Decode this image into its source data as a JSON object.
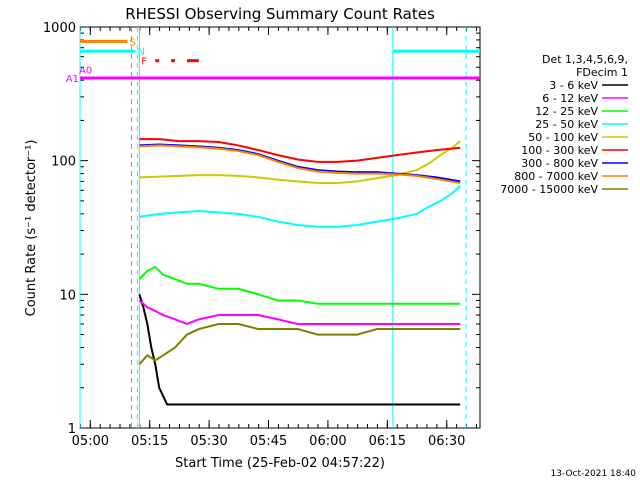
{
  "chart_data": {
    "type": "line",
    "title": "RHESSI Observing Summary Count Rates",
    "xlabel": "Start Time (25-Feb-02 04:57:22)",
    "ylabel": "Count Rate (s⁻¹ detector⁻¹)",
    "yscale": "log",
    "ylim": [
      1,
      1000
    ],
    "xlim_minutes_after_0457": [
      0,
      101
    ],
    "x_unit": "minutes after 04:57:22",
    "x_ticks": [
      {
        "label": "05:00",
        "minutes": 2.6
      },
      {
        "label": "05:15",
        "minutes": 17.6
      },
      {
        "label": "05:30",
        "minutes": 32.6
      },
      {
        "label": "05:45",
        "minutes": 47.6
      },
      {
        "label": "06:00",
        "minutes": 62.6
      },
      {
        "label": "06:15",
        "minutes": 77.6
      },
      {
        "label": "06:30",
        "minutes": 92.6
      }
    ],
    "y_ticks": [
      {
        "label": "1",
        "value": 1
      },
      {
        "label": "10",
        "value": 10
      },
      {
        "label": "100",
        "value": 100
      },
      {
        "label": "1000",
        "value": 1000
      }
    ],
    "legend_header": [
      "Det 1,3,4,5,6,9,",
      "FDecim 1"
    ],
    "legend_placement": "right",
    "series": [
      {
        "name": "3 - 6 keV",
        "color": "#000000",
        "x": [
          15,
          16,
          17,
          18,
          19,
          20,
          22,
          24,
          26,
          30,
          40,
          50,
          60,
          70,
          80,
          90,
          96
        ],
        "y": [
          10,
          8,
          6,
          4,
          3,
          2,
          1.5,
          1.5,
          1.5,
          1.5,
          1.5,
          1.5,
          1.5,
          1.5,
          1.5,
          1.5,
          1.5
        ]
      },
      {
        "name": "6 - 12 keV",
        "color": "#ff00ff",
        "x": [
          15,
          17,
          19,
          21,
          24,
          27,
          30,
          35,
          40,
          45,
          50,
          55,
          60,
          65,
          70,
          75,
          80,
          85,
          90,
          96
        ],
        "y": [
          9,
          8,
          7.5,
          7,
          6.5,
          6,
          6.5,
          7,
          7,
          7,
          6.5,
          6,
          6,
          6,
          6,
          6,
          6,
          6,
          6,
          6
        ]
      },
      {
        "name": "12 - 25 keV",
        "color": "#00ff00",
        "x": [
          15,
          17,
          19,
          21,
          24,
          27,
          30,
          35,
          40,
          45,
          50,
          55,
          60,
          65,
          70,
          75,
          80,
          85,
          90,
          96
        ],
        "y": [
          13,
          15,
          16,
          14,
          13,
          12,
          12,
          11,
          11,
          10,
          9,
          9,
          8.5,
          8.5,
          8.5,
          8.5,
          8.5,
          8.5,
          8.5,
          8.5
        ]
      },
      {
        "name": "25 - 50 keV",
        "color": "#00ffff",
        "x": [
          15,
          20,
          25,
          30,
          35,
          40,
          45,
          50,
          55,
          60,
          65,
          70,
          75,
          80,
          85,
          88,
          91,
          94,
          96
        ],
        "y": [
          38,
          40,
          41,
          42,
          41,
          40,
          38,
          35,
          33,
          32,
          32,
          33,
          35,
          37,
          40,
          45,
          50,
          57,
          65
        ]
      },
      {
        "name": "50 - 100 keV",
        "color": "#cccc00",
        "x": [
          15,
          20,
          25,
          30,
          35,
          40,
          45,
          50,
          55,
          60,
          65,
          70,
          75,
          80,
          85,
          88,
          91,
          94,
          96
        ],
        "y": [
          75,
          76,
          77,
          78,
          78,
          77,
          75,
          72,
          70,
          68,
          68,
          70,
          74,
          78,
          85,
          95,
          110,
          125,
          140
        ]
      },
      {
        "name": "100 - 300 keV",
        "color": "#ff0000",
        "x": [
          15,
          20,
          25,
          30,
          35,
          40,
          45,
          50,
          55,
          60,
          65,
          70,
          75,
          80,
          85,
          90,
          96
        ],
        "y": [
          145,
          145,
          140,
          140,
          138,
          130,
          120,
          110,
          102,
          98,
          98,
          100,
          105,
          110,
          115,
          120,
          125
        ]
      },
      {
        "name": "300 - 800 keV",
        "color": "#0000ff",
        "x": [
          15,
          20,
          25,
          30,
          35,
          40,
          45,
          50,
          55,
          60,
          65,
          70,
          75,
          80,
          85,
          90,
          96
        ],
        "y": [
          130,
          132,
          130,
          128,
          125,
          120,
          112,
          100,
          90,
          85,
          83,
          82,
          82,
          80,
          78,
          75,
          70
        ]
      },
      {
        "name": "800 - 7000 keV",
        "color": "#ff8000",
        "x": [
          15,
          20,
          25,
          30,
          35,
          40,
          45,
          50,
          55,
          60,
          65,
          70,
          75,
          80,
          85,
          90,
          96
        ],
        "y": [
          128,
          130,
          128,
          126,
          123,
          118,
          110,
          98,
          88,
          83,
          81,
          80,
          80,
          79,
          77,
          73,
          68
        ]
      },
      {
        "name": "7000 - 15000 keV",
        "color": "#808000",
        "x": [
          15,
          17,
          19,
          21,
          24,
          27,
          30,
          35,
          40,
          45,
          50,
          55,
          60,
          65,
          70,
          75,
          80,
          85,
          90,
          96
        ],
        "y": [
          3,
          3.5,
          3.2,
          3.5,
          4,
          5,
          5.5,
          6,
          6,
          5.5,
          5.5,
          5.5,
          5,
          5,
          5,
          5.5,
          5.5,
          5.5,
          5.5,
          5.5
        ]
      }
    ],
    "flags": [
      {
        "label": "S",
        "color": "#ff8000",
        "x_start": 0,
        "x_end": 12,
        "y": 780
      },
      {
        "label": "N",
        "color": "#00ffff",
        "x_start": 0,
        "x_end": 14,
        "x2_start": 79,
        "x2_end": 101,
        "y": 660
      },
      {
        "label": "F",
        "color": "#ff0000",
        "segments": [
          [
            19,
            20
          ],
          [
            23,
            24
          ],
          [
            27,
            30
          ]
        ],
        "y": 560
      },
      {
        "label": "A0",
        "color": "#ff00ff",
        "y": 480
      },
      {
        "label": "A1",
        "color": "#ff00ff",
        "x_start": 0,
        "x_end": 101,
        "y": 415
      }
    ],
    "vlines": [
      {
        "x": 0,
        "color": "#00ffff",
        "style": "solid"
      },
      {
        "x": 13,
        "color": "#ff8000",
        "style": "dashed"
      },
      {
        "x": 14.5,
        "color": "#00ffff",
        "style": "dashed"
      },
      {
        "x": 15,
        "color": "#00ffff",
        "style": "solid"
      },
      {
        "x": 79,
        "color": "#00ffff",
        "style": "solid"
      },
      {
        "x": 97.5,
        "color": "#00ffff",
        "style": "dashed"
      }
    ],
    "footer_timestamp": "13-Oct-2021 18:40"
  }
}
